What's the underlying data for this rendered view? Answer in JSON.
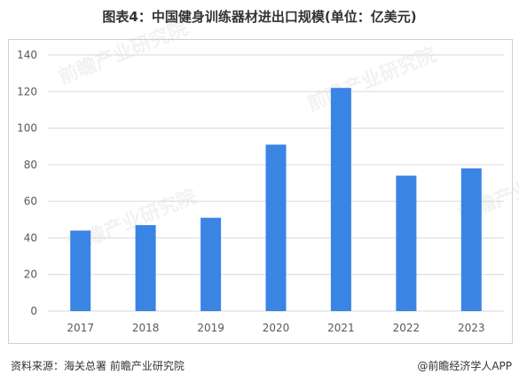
{
  "title": "图表4：中国健身训练器材进出口规模(单位：亿美元)",
  "source": "资料来源：海关总署 前瞻产业研究院",
  "credit": "@前瞻经济学人APP",
  "colors": {
    "bar": "#3a84e4",
    "grid": "#d9d9d9",
    "tick_text": "#595959"
  },
  "chart_data": {
    "type": "bar",
    "title": "图表4：中国健身训练器材进出口规模(单位：亿美元)",
    "xlabel": "",
    "ylabel": "",
    "categories": [
      "2017",
      "2018",
      "2019",
      "2020",
      "2021",
      "2022",
      "2023"
    ],
    "values": [
      44,
      47,
      51,
      91,
      122,
      74,
      78
    ],
    "ylim": [
      0,
      140
    ],
    "yticks": [
      0,
      20,
      40,
      60,
      80,
      100,
      120,
      140
    ],
    "grid": true,
    "legend": "none"
  }
}
